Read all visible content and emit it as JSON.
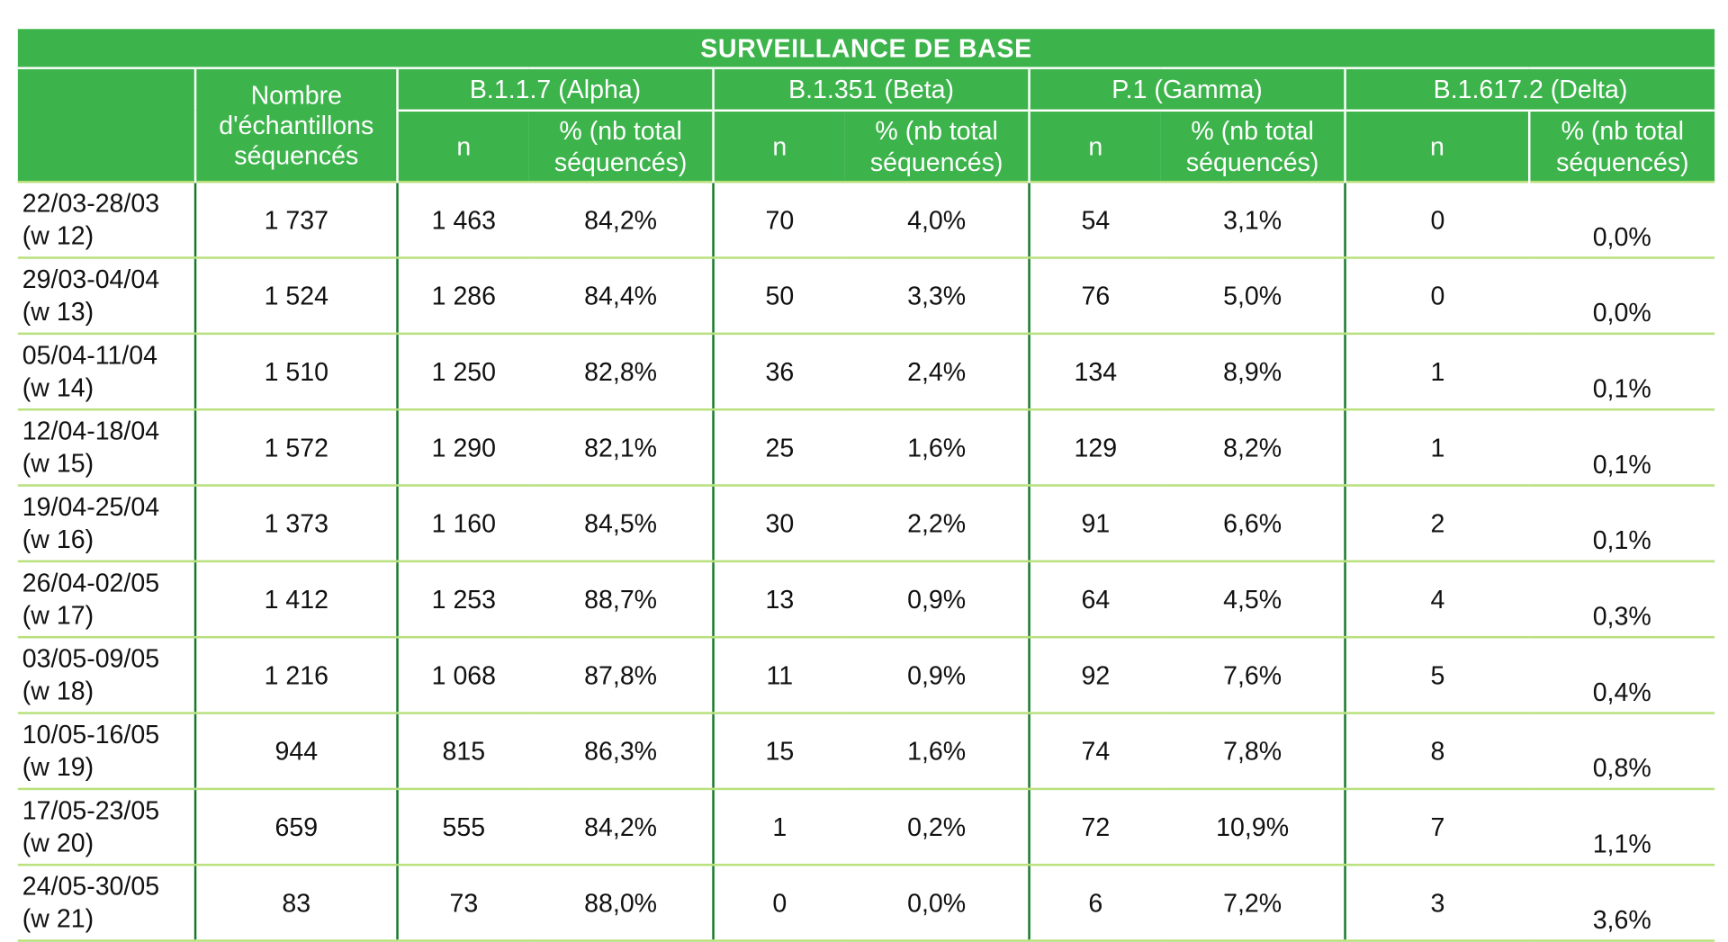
{
  "title": "SURVEILLANCE DE BASE",
  "headers": {
    "count": "Nombre d'échantillons séquencés",
    "variants": [
      "B.1.1.7 (Alpha)",
      "B.1.351 (Beta)",
      "P.1 (Gamma)",
      "B.1.617.2 (Delta)"
    ],
    "n": "n",
    "pct": "% (nb total séquencés)"
  },
  "rows": [
    {
      "period": "22/03-28/03",
      "week": "(w 12)",
      "total": "1 737",
      "v": [
        [
          "1 463",
          "84,2%"
        ],
        [
          "70",
          "4,0%"
        ],
        [
          "54",
          "3,1%"
        ],
        [
          "0",
          "0,0%"
        ]
      ]
    },
    {
      "period": "29/03-04/04",
      "week": "(w 13)",
      "total": "1 524",
      "v": [
        [
          "1 286",
          "84,4%"
        ],
        [
          "50",
          "3,3%"
        ],
        [
          "76",
          "5,0%"
        ],
        [
          "0",
          "0,0%"
        ]
      ]
    },
    {
      "period": "05/04-11/04",
      "week": "(w 14)",
      "total": "1 510",
      "v": [
        [
          "1 250",
          "82,8%"
        ],
        [
          "36",
          "2,4%"
        ],
        [
          "134",
          "8,9%"
        ],
        [
          "1",
          "0,1%"
        ]
      ]
    },
    {
      "period": "12/04-18/04",
      "week": "(w 15)",
      "total": "1 572",
      "v": [
        [
          "1 290",
          "82,1%"
        ],
        [
          "25",
          "1,6%"
        ],
        [
          "129",
          "8,2%"
        ],
        [
          "1",
          "0,1%"
        ]
      ]
    },
    {
      "period": "19/04-25/04",
      "week": "(w 16)",
      "total": "1 373",
      "v": [
        [
          "1 160",
          "84,5%"
        ],
        [
          "30",
          "2,2%"
        ],
        [
          "91",
          "6,6%"
        ],
        [
          "2",
          "0,1%"
        ]
      ]
    },
    {
      "period": "26/04-02/05",
      "week": "(w 17)",
      "total": "1 412",
      "v": [
        [
          "1 253",
          "88,7%"
        ],
        [
          "13",
          "0,9%"
        ],
        [
          "64",
          "4,5%"
        ],
        [
          "4",
          "0,3%"
        ]
      ]
    },
    {
      "period": "03/05-09/05",
      "week": "(w 18)",
      "total": "1 216",
      "v": [
        [
          "1 068",
          "87,8%"
        ],
        [
          "11",
          "0,9%"
        ],
        [
          "92",
          "7,6%"
        ],
        [
          "5",
          "0,4%"
        ]
      ]
    },
    {
      "period": "10/05-16/05",
      "week": "(w 19)",
      "total": "944",
      "v": [
        [
          "815",
          "86,3%"
        ],
        [
          "15",
          "1,6%"
        ],
        [
          "74",
          "7,8%"
        ],
        [
          "8",
          "0,8%"
        ]
      ]
    },
    {
      "period": "17/05-23/05",
      "week": "(w 20)",
      "total": "659",
      "v": [
        [
          "555",
          "84,2%"
        ],
        [
          "1",
          "0,2%"
        ],
        [
          "72",
          "10,9%"
        ],
        [
          "7",
          "1,1%"
        ]
      ]
    },
    {
      "period": "24/05-30/05",
      "week": "(w 21)",
      "total": "83",
      "v": [
        [
          "73",
          "88,0%"
        ],
        [
          "0",
          "0,0%"
        ],
        [
          "6",
          "7,2%"
        ],
        [
          "3",
          "3,6%"
        ]
      ]
    }
  ],
  "colors": {
    "header_green": "#3cb44b",
    "row_rule": "#b8e07c",
    "column_rule": "#157a2a"
  }
}
